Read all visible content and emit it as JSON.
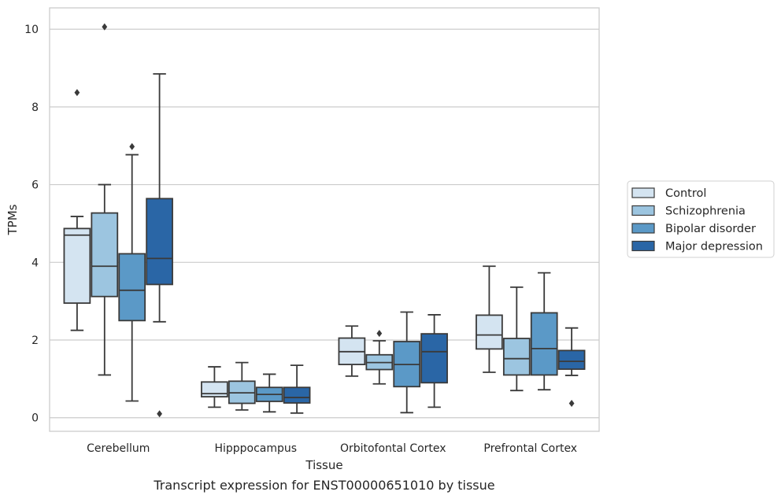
{
  "chart_data": {
    "type": "box",
    "title": "",
    "caption": "Transcript expression for ENST00000651010 by tissue",
    "xlabel": "Tissue",
    "ylabel": "TPMs",
    "ylim": [
      -0.35,
      10.55
    ],
    "yticks": [
      0,
      2,
      4,
      6,
      8,
      10
    ],
    "grid": "horizontal",
    "legend_position": "right",
    "categories": [
      "Cerebellum",
      "Hipppocampus",
      "Orbitofontal Cortex",
      "Prefrontal Cortex"
    ],
    "series": [
      {
        "name": "Control",
        "color": "#d4e4f1",
        "boxes": [
          {
            "whislo": 2.25,
            "q1": 2.95,
            "med": 4.7,
            "q3": 4.87,
            "whishi": 5.18,
            "fliers": [
              8.37
            ]
          },
          {
            "whislo": 0.27,
            "q1": 0.54,
            "med": 0.62,
            "q3": 0.92,
            "whishi": 1.31,
            "fliers": []
          },
          {
            "whislo": 1.07,
            "q1": 1.37,
            "med": 1.7,
            "q3": 2.05,
            "whishi": 2.36,
            "fliers": []
          },
          {
            "whislo": 1.17,
            "q1": 1.77,
            "med": 2.13,
            "q3": 2.64,
            "whishi": 3.9,
            "fliers": []
          }
        ]
      },
      {
        "name": "Schizophrenia",
        "color": "#9cc5e0",
        "boxes": [
          {
            "whislo": 1.1,
            "q1": 3.12,
            "med": 3.9,
            "q3": 5.27,
            "whishi": 6.0,
            "fliers": [
              10.06
            ]
          },
          {
            "whislo": 0.2,
            "q1": 0.37,
            "med": 0.64,
            "q3": 0.94,
            "whishi": 1.42,
            "fliers": []
          },
          {
            "whislo": 0.87,
            "q1": 1.24,
            "med": 1.42,
            "q3": 1.62,
            "whishi": 1.98,
            "fliers": [
              2.17
            ]
          },
          {
            "whislo": 0.7,
            "q1": 1.1,
            "med": 1.52,
            "q3": 2.04,
            "whishi": 3.36,
            "fliers": []
          }
        ]
      },
      {
        "name": "Bipolar disorder",
        "color": "#5b99c7",
        "boxes": [
          {
            "whislo": 0.43,
            "q1": 2.5,
            "med": 3.28,
            "q3": 4.22,
            "whishi": 6.77,
            "fliers": [
              6.98
            ]
          },
          {
            "whislo": 0.15,
            "q1": 0.42,
            "med": 0.6,
            "q3": 0.78,
            "whishi": 1.12,
            "fliers": []
          },
          {
            "whislo": 0.13,
            "q1": 0.8,
            "med": 1.37,
            "q3": 1.96,
            "whishi": 2.72,
            "fliers": []
          },
          {
            "whislo": 0.72,
            "q1": 1.1,
            "med": 1.78,
            "q3": 2.7,
            "whishi": 3.73,
            "fliers": []
          }
        ]
      },
      {
        "name": "Major depression",
        "color": "#2a66a6",
        "boxes": [
          {
            "whislo": 2.47,
            "q1": 3.43,
            "med": 4.1,
            "q3": 5.64,
            "whishi": 8.85,
            "fliers": [
              0.1
            ]
          },
          {
            "whislo": 0.12,
            "q1": 0.38,
            "med": 0.52,
            "q3": 0.78,
            "whishi": 1.35,
            "fliers": []
          },
          {
            "whislo": 0.27,
            "q1": 0.9,
            "med": 1.7,
            "q3": 2.16,
            "whishi": 2.65,
            "fliers": []
          },
          {
            "whislo": 1.09,
            "q1": 1.25,
            "med": 1.45,
            "q3": 1.73,
            "whishi": 2.31,
            "fliers": [
              0.37
            ]
          }
        ]
      }
    ]
  }
}
